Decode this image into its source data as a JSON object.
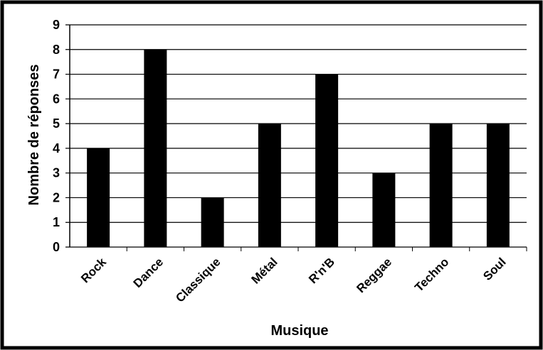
{
  "chart_data": {
    "type": "bar",
    "title": "",
    "xlabel": "Musique",
    "ylabel": "Nombre de réponses",
    "categories": [
      "Rock",
      "Dance",
      "Classique",
      "Métal",
      "R'n'B",
      "Reggae",
      "Techno",
      "Soul"
    ],
    "values": [
      4,
      8,
      2,
      5,
      7,
      3,
      5,
      5
    ],
    "ylim": [
      0,
      9
    ],
    "yticks": [
      "0",
      "1",
      "2",
      "3",
      "4",
      "5",
      "6",
      "7",
      "8",
      "9"
    ],
    "grid": true,
    "legend": "none",
    "colors": {
      "bar": "#000000",
      "grid": "#000000",
      "frame": "#000000",
      "background": "#ffffff"
    }
  }
}
